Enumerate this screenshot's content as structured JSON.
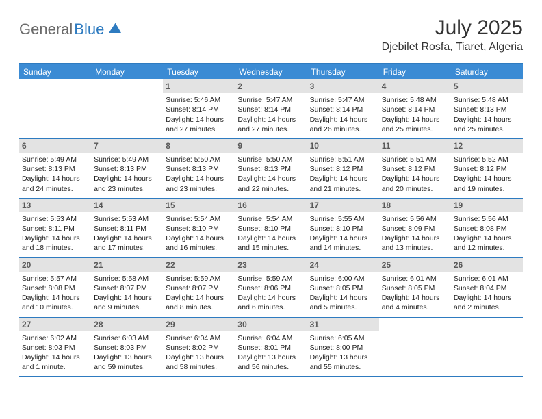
{
  "brand": {
    "part1": "General",
    "part2": "Blue"
  },
  "title": "July 2025",
  "location": "Djebilet Rosfa, Tiaret, Algeria",
  "colors": {
    "accent": "#2e7bc0",
    "header_bg": "#3b8bd4",
    "daynum_bg": "#e3e3e3",
    "logo_gray": "#6b6b6b"
  },
  "day_headers": [
    "Sunday",
    "Monday",
    "Tuesday",
    "Wednesday",
    "Thursday",
    "Friday",
    "Saturday"
  ],
  "weeks": [
    [
      {
        "n": "",
        "sr": "",
        "ss": "",
        "dl": ""
      },
      {
        "n": "",
        "sr": "",
        "ss": "",
        "dl": ""
      },
      {
        "n": "1",
        "sr": "Sunrise: 5:46 AM",
        "ss": "Sunset: 8:14 PM",
        "dl": "Daylight: 14 hours and 27 minutes."
      },
      {
        "n": "2",
        "sr": "Sunrise: 5:47 AM",
        "ss": "Sunset: 8:14 PM",
        "dl": "Daylight: 14 hours and 27 minutes."
      },
      {
        "n": "3",
        "sr": "Sunrise: 5:47 AM",
        "ss": "Sunset: 8:14 PM",
        "dl": "Daylight: 14 hours and 26 minutes."
      },
      {
        "n": "4",
        "sr": "Sunrise: 5:48 AM",
        "ss": "Sunset: 8:14 PM",
        "dl": "Daylight: 14 hours and 25 minutes."
      },
      {
        "n": "5",
        "sr": "Sunrise: 5:48 AM",
        "ss": "Sunset: 8:13 PM",
        "dl": "Daylight: 14 hours and 25 minutes."
      }
    ],
    [
      {
        "n": "6",
        "sr": "Sunrise: 5:49 AM",
        "ss": "Sunset: 8:13 PM",
        "dl": "Daylight: 14 hours and 24 minutes."
      },
      {
        "n": "7",
        "sr": "Sunrise: 5:49 AM",
        "ss": "Sunset: 8:13 PM",
        "dl": "Daylight: 14 hours and 23 minutes."
      },
      {
        "n": "8",
        "sr": "Sunrise: 5:50 AM",
        "ss": "Sunset: 8:13 PM",
        "dl": "Daylight: 14 hours and 23 minutes."
      },
      {
        "n": "9",
        "sr": "Sunrise: 5:50 AM",
        "ss": "Sunset: 8:13 PM",
        "dl": "Daylight: 14 hours and 22 minutes."
      },
      {
        "n": "10",
        "sr": "Sunrise: 5:51 AM",
        "ss": "Sunset: 8:12 PM",
        "dl": "Daylight: 14 hours and 21 minutes."
      },
      {
        "n": "11",
        "sr": "Sunrise: 5:51 AM",
        "ss": "Sunset: 8:12 PM",
        "dl": "Daylight: 14 hours and 20 minutes."
      },
      {
        "n": "12",
        "sr": "Sunrise: 5:52 AM",
        "ss": "Sunset: 8:12 PM",
        "dl": "Daylight: 14 hours and 19 minutes."
      }
    ],
    [
      {
        "n": "13",
        "sr": "Sunrise: 5:53 AM",
        "ss": "Sunset: 8:11 PM",
        "dl": "Daylight: 14 hours and 18 minutes."
      },
      {
        "n": "14",
        "sr": "Sunrise: 5:53 AM",
        "ss": "Sunset: 8:11 PM",
        "dl": "Daylight: 14 hours and 17 minutes."
      },
      {
        "n": "15",
        "sr": "Sunrise: 5:54 AM",
        "ss": "Sunset: 8:10 PM",
        "dl": "Daylight: 14 hours and 16 minutes."
      },
      {
        "n": "16",
        "sr": "Sunrise: 5:54 AM",
        "ss": "Sunset: 8:10 PM",
        "dl": "Daylight: 14 hours and 15 minutes."
      },
      {
        "n": "17",
        "sr": "Sunrise: 5:55 AM",
        "ss": "Sunset: 8:10 PM",
        "dl": "Daylight: 14 hours and 14 minutes."
      },
      {
        "n": "18",
        "sr": "Sunrise: 5:56 AM",
        "ss": "Sunset: 8:09 PM",
        "dl": "Daylight: 14 hours and 13 minutes."
      },
      {
        "n": "19",
        "sr": "Sunrise: 5:56 AM",
        "ss": "Sunset: 8:08 PM",
        "dl": "Daylight: 14 hours and 12 minutes."
      }
    ],
    [
      {
        "n": "20",
        "sr": "Sunrise: 5:57 AM",
        "ss": "Sunset: 8:08 PM",
        "dl": "Daylight: 14 hours and 10 minutes."
      },
      {
        "n": "21",
        "sr": "Sunrise: 5:58 AM",
        "ss": "Sunset: 8:07 PM",
        "dl": "Daylight: 14 hours and 9 minutes."
      },
      {
        "n": "22",
        "sr": "Sunrise: 5:59 AM",
        "ss": "Sunset: 8:07 PM",
        "dl": "Daylight: 14 hours and 8 minutes."
      },
      {
        "n": "23",
        "sr": "Sunrise: 5:59 AM",
        "ss": "Sunset: 8:06 PM",
        "dl": "Daylight: 14 hours and 6 minutes."
      },
      {
        "n": "24",
        "sr": "Sunrise: 6:00 AM",
        "ss": "Sunset: 8:05 PM",
        "dl": "Daylight: 14 hours and 5 minutes."
      },
      {
        "n": "25",
        "sr": "Sunrise: 6:01 AM",
        "ss": "Sunset: 8:05 PM",
        "dl": "Daylight: 14 hours and 4 minutes."
      },
      {
        "n": "26",
        "sr": "Sunrise: 6:01 AM",
        "ss": "Sunset: 8:04 PM",
        "dl": "Daylight: 14 hours and 2 minutes."
      }
    ],
    [
      {
        "n": "27",
        "sr": "Sunrise: 6:02 AM",
        "ss": "Sunset: 8:03 PM",
        "dl": "Daylight: 14 hours and 1 minute."
      },
      {
        "n": "28",
        "sr": "Sunrise: 6:03 AM",
        "ss": "Sunset: 8:03 PM",
        "dl": "Daylight: 13 hours and 59 minutes."
      },
      {
        "n": "29",
        "sr": "Sunrise: 6:04 AM",
        "ss": "Sunset: 8:02 PM",
        "dl": "Daylight: 13 hours and 58 minutes."
      },
      {
        "n": "30",
        "sr": "Sunrise: 6:04 AM",
        "ss": "Sunset: 8:01 PM",
        "dl": "Daylight: 13 hours and 56 minutes."
      },
      {
        "n": "31",
        "sr": "Sunrise: 6:05 AM",
        "ss": "Sunset: 8:00 PM",
        "dl": "Daylight: 13 hours and 55 minutes."
      },
      {
        "n": "",
        "sr": "",
        "ss": "",
        "dl": ""
      },
      {
        "n": "",
        "sr": "",
        "ss": "",
        "dl": ""
      }
    ]
  ]
}
